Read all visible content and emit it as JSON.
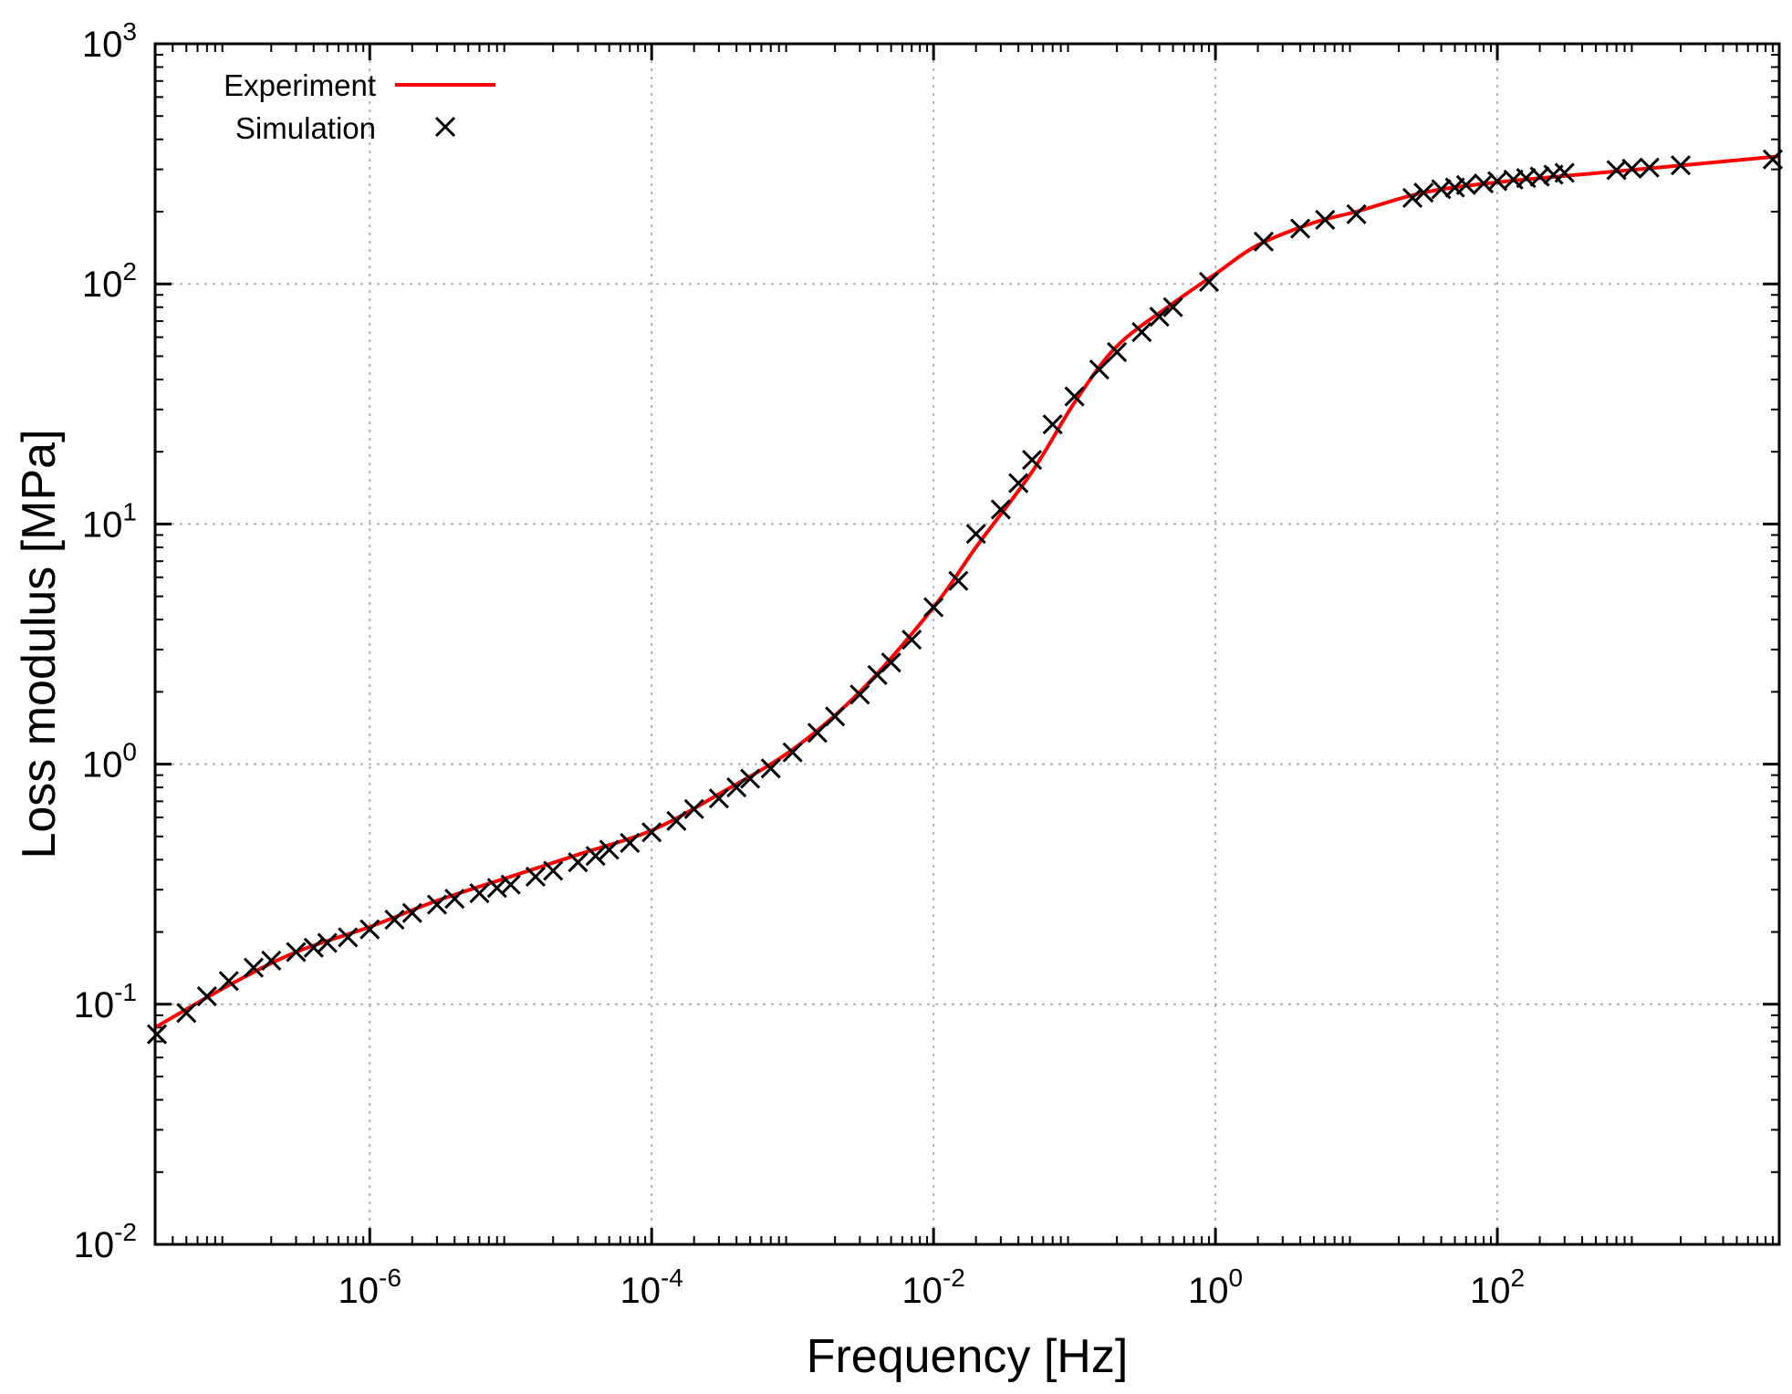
{
  "chart_data": {
    "type": "line",
    "xscale": "log",
    "yscale": "log",
    "xlim": [
      3e-08,
      10000
    ],
    "ylim": [
      0.01,
      1000
    ],
    "xlabel": "Frequency [Hz]",
    "ylabel": "Loss modulus [MPa]",
    "grid": true,
    "legend_position": "top-left",
    "x_ticks": [
      {
        "value": 1e-06,
        "base": "10",
        "exp": "-6"
      },
      {
        "value": 0.0001,
        "base": "10",
        "exp": "-4"
      },
      {
        "value": 0.01,
        "base": "10",
        "exp": "-2"
      },
      {
        "value": 1,
        "base": "10",
        "exp": "0"
      },
      {
        "value": 100,
        "base": "10",
        "exp": "2"
      }
    ],
    "y_ticks": [
      {
        "value": 0.01,
        "base": "10",
        "exp": "-2"
      },
      {
        "value": 0.1,
        "base": "10",
        "exp": "-1"
      },
      {
        "value": 1,
        "base": "10",
        "exp": "0"
      },
      {
        "value": 10,
        "base": "10",
        "exp": "1"
      },
      {
        "value": 100,
        "base": "10",
        "exp": "2"
      },
      {
        "value": 1000,
        "base": "10",
        "exp": "3"
      }
    ],
    "series": [
      {
        "name": "Experiment",
        "kind": "line",
        "color": "#ff0000",
        "x": [
          3e-08,
          1e-07,
          3e-07,
          1e-06,
          3e-06,
          1e-05,
          3e-05,
          0.0001,
          0.0003,
          0.001,
          0.003,
          0.01,
          0.02,
          0.05,
          0.1,
          0.2,
          0.5,
          1,
          2,
          5,
          10,
          30,
          100,
          1000,
          10000
        ],
        "y": [
          0.08,
          0.12,
          0.165,
          0.21,
          0.27,
          0.34,
          0.42,
          0.53,
          0.75,
          1.15,
          2.0,
          4.5,
          8.0,
          16.5,
          32.0,
          55.0,
          83.0,
          110.0,
          145.0,
          180.0,
          200.0,
          240.0,
          265.0,
          300.0,
          340.0
        ]
      },
      {
        "name": "Simulation",
        "kind": "scatter",
        "marker": "x",
        "color": "#000000",
        "x": [
          3e-08,
          5e-08,
          7e-08,
          1e-07,
          1.5e-07,
          2e-07,
          3e-07,
          4e-07,
          5e-07,
          7e-07,
          1e-06,
          1.5e-06,
          2e-06,
          3e-06,
          4e-06,
          6e-06,
          8e-06,
          1e-05,
          1.5e-05,
          2e-05,
          3e-05,
          4e-05,
          5e-05,
          7e-05,
          0.0001,
          0.00015,
          0.0002,
          0.0003,
          0.0004,
          0.0005,
          0.0007,
          0.001,
          0.0015,
          0.002,
          0.003,
          0.004,
          0.005,
          0.007,
          0.01,
          0.015,
          0.02,
          0.03,
          0.04,
          0.05,
          0.07,
          0.1,
          0.15,
          0.2,
          0.3,
          0.4,
          0.5,
          0.9,
          2.2,
          4,
          6,
          10,
          25,
          30,
          40,
          50,
          60,
          80,
          100,
          130,
          160,
          200,
          250,
          300,
          700,
          900,
          1200,
          2000,
          9000
        ],
        "y": [
          0.075,
          0.092,
          0.108,
          0.125,
          0.142,
          0.152,
          0.165,
          0.172,
          0.18,
          0.19,
          0.205,
          0.225,
          0.24,
          0.26,
          0.275,
          0.29,
          0.305,
          0.315,
          0.34,
          0.36,
          0.39,
          0.415,
          0.44,
          0.47,
          0.52,
          0.58,
          0.65,
          0.72,
          0.8,
          0.87,
          0.96,
          1.12,
          1.35,
          1.58,
          1.95,
          2.35,
          2.65,
          3.3,
          4.5,
          5.8,
          9.1,
          11.5,
          14.8,
          18.5,
          26.0,
          34.0,
          44.0,
          52.0,
          63.0,
          73.0,
          80.0,
          102.0,
          150.0,
          170.0,
          185.0,
          195.0,
          228.0,
          240.0,
          248.0,
          252.0,
          258.0,
          262.0,
          268.0,
          272.0,
          276.0,
          280.0,
          285.0,
          290.0,
          298.0,
          302.0,
          305.0,
          312.0,
          330.0
        ]
      }
    ]
  }
}
